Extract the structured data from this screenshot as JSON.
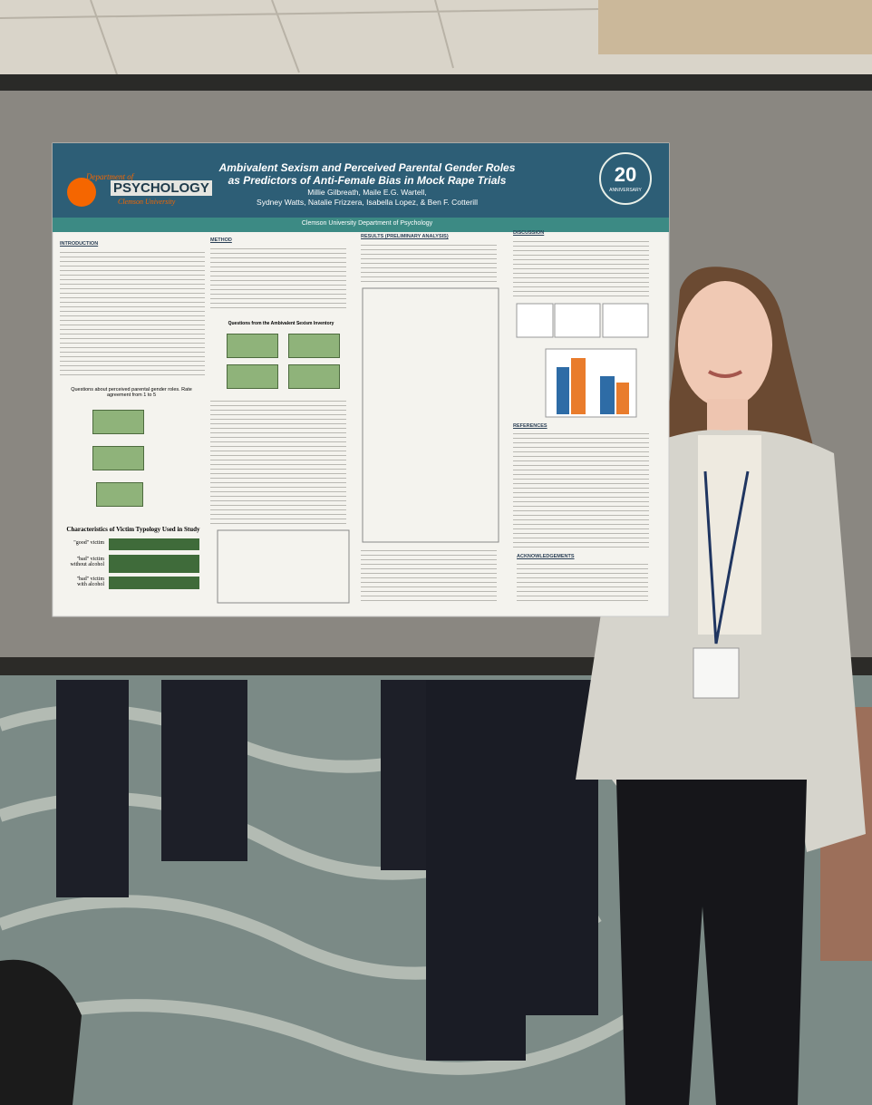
{
  "poster": {
    "department": "Department of",
    "psychology": "PSYCHOLOGY",
    "university": "Clemson University",
    "title": [
      "Ambivalent Sexism and Perceived Parental Gender Roles",
      "as Predictors of Anti-Female Bias in Mock Rape Trials"
    ],
    "authors": [
      "Millie Gilbreath, Maile E.G. Wartell,",
      "Sydney Watts, Natalie Frizzera, Isabella Lopez, & Ben F. Cotterill"
    ],
    "affiliation": "Clemson University Department of Psychology",
    "badge": {
      "number": "20",
      "label": "ANNIVERSARY"
    },
    "sections": [
      "INTRODUCTION",
      "METHOD",
      "RESULTS (PRELIMINARY ANALYSIS)",
      "DISCUSSION",
      "REFERENCES",
      "ACKNOWLEDGEMENTS"
    ],
    "figure1_caption": "Questions about perceived parental gender roles. Rate agreement from 1 to 5",
    "figure2_caption": "Characteristics of Victim Typology Used in Study",
    "victim_types": [
      "\"good\" victim",
      "\"bad\" victim without alcohol",
      "\"bad\" victim with alcohol"
    ],
    "figure3_caption": "Questions from the Ambivalent Sexism Inventory"
  }
}
